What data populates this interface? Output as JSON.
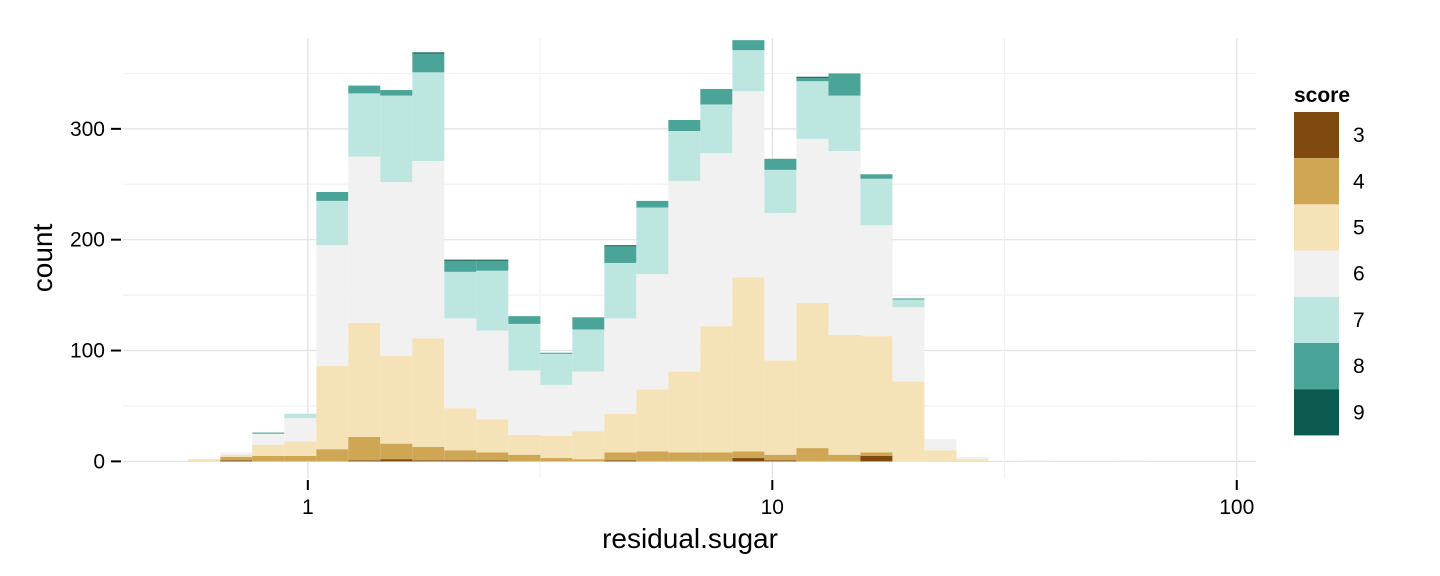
{
  "chart_data": {
    "type": "bar",
    "stacked": true,
    "x_scale": "log10",
    "xlabel": "residual.sugar",
    "ylabel": "count",
    "x_ticks": [
      1,
      10,
      100
    ],
    "x_tick_labels": [
      "1",
      "10",
      "100"
    ],
    "y_ticks": [
      0,
      100,
      200,
      300
    ],
    "y_tick_labels": [
      "0",
      "100",
      "200",
      "300"
    ],
    "xlim": [
      0.4,
      110
    ],
    "ylim": [
      -15,
      400
    ],
    "grid": true,
    "bin_edges": [
      0.552,
      0.648,
      0.759,
      0.89,
      1.043,
      1.222,
      1.432,
      1.679,
      1.967,
      2.306,
      2.702,
      3.167,
      3.711,
      4.349,
      5.097,
      5.974,
      7.0,
      8.204,
      9.615,
      11.27,
      13.21,
      15.48,
      18.14,
      21.26,
      24.91,
      29.2,
      34.2,
      40.1,
      47.0,
      55.1,
      64.6,
      75.7
    ],
    "series": [
      {
        "name": "3",
        "color": "#7F4A10",
        "values": [
          0,
          1,
          0,
          0,
          0,
          1,
          2,
          1,
          1,
          1,
          0,
          0,
          0,
          1,
          0,
          0,
          0,
          3,
          1,
          0,
          0,
          5,
          0,
          0,
          0,
          0,
          0,
          0,
          0,
          0,
          0
        ]
      },
      {
        "name": "4",
        "color": "#CFA654",
        "values": [
          0,
          3,
          5,
          5,
          11,
          21,
          14,
          12,
          9,
          7,
          6,
          3,
          2,
          7,
          9,
          8,
          8,
          6,
          5,
          12,
          6,
          3,
          0,
          0,
          0,
          0,
          0,
          0,
          0,
          0,
          0
        ]
      },
      {
        "name": "5",
        "color": "#F5E2B6",
        "values": [
          2,
          2,
          10,
          13,
          75,
          103,
          79,
          98,
          38,
          30,
          18,
          20,
          25,
          35,
          56,
          73,
          114,
          157,
          85,
          131,
          108,
          105,
          72,
          10,
          2,
          0,
          0,
          0,
          0,
          0,
          0
        ]
      },
      {
        "name": "6",
        "color": "#F1F1F1",
        "values": [
          0,
          2,
          10,
          21,
          109,
          150,
          157,
          160,
          81,
          80,
          58,
          46,
          54,
          86,
          104,
          172,
          156,
          168,
          133,
          148,
          166,
          100,
          67,
          10,
          2,
          0,
          1,
          0,
          0,
          1,
          0
        ]
      },
      {
        "name": "7",
        "color": "#BEE6E1",
        "values": [
          0,
          0,
          0,
          4,
          40,
          57,
          78,
          80,
          42,
          54,
          42,
          28,
          38,
          50,
          60,
          45,
          44,
          37,
          39,
          52,
          50,
          42,
          7,
          0,
          0,
          0,
          0,
          0,
          0,
          0,
          0
        ]
      },
      {
        "name": "8",
        "color": "#4AA598",
        "values": [
          0,
          0,
          1,
          0,
          8,
          7,
          5,
          17,
          10,
          9,
          7,
          1,
          11,
          15,
          6,
          10,
          14,
          9,
          10,
          3,
          20,
          4,
          1,
          0,
          0,
          0,
          0,
          0,
          0,
          0,
          0
        ]
      },
      {
        "name": "9",
        "color": "#0C5B51",
        "values": [
          0,
          0,
          0,
          0,
          0,
          0,
          0,
          1,
          1,
          1,
          0,
          0,
          0,
          1,
          0,
          0,
          0,
          0,
          0,
          1,
          0,
          0,
          0,
          0,
          0,
          0,
          0,
          0,
          0,
          0,
          0
        ]
      }
    ]
  },
  "legend": {
    "title": "score",
    "position": "right"
  }
}
